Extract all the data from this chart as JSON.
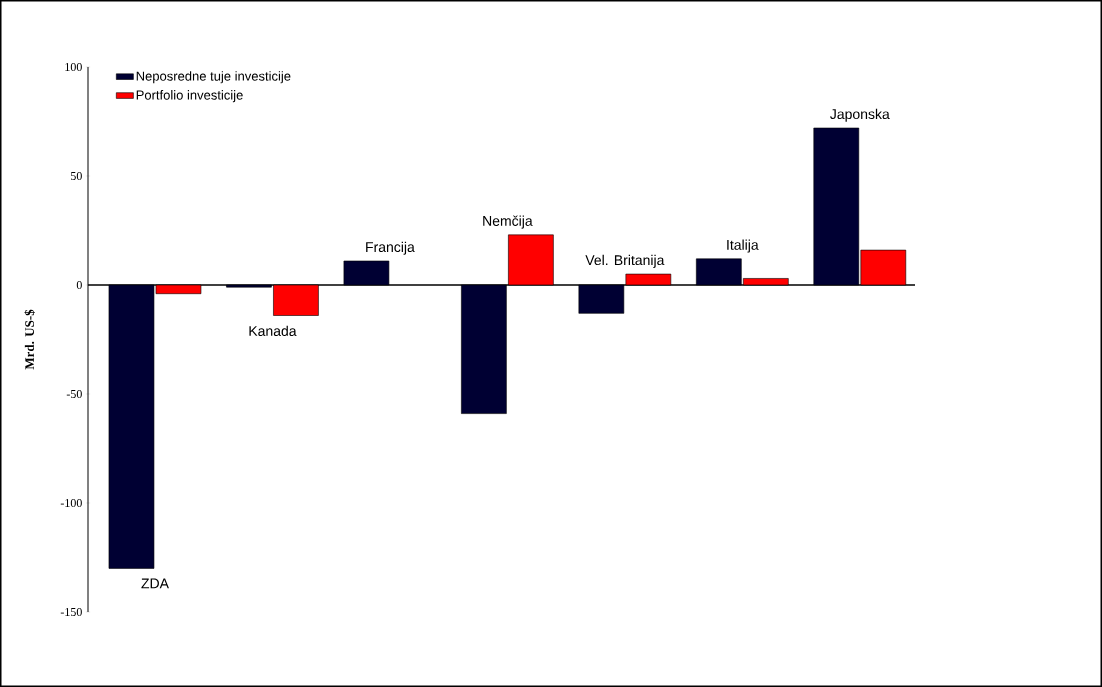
{
  "chart_data": {
    "type": "bar",
    "ylabel": "Mrd. US-$",
    "categories": [
      "ZDA",
      "Kanada",
      "Francija",
      "Nemčija",
      "Vel. Britanija",
      "Italija",
      "Japonska"
    ],
    "series": [
      {
        "name": "Neposredne tuje investicije",
        "color": "#000033",
        "values": [
          -130,
          -1,
          11,
          -59,
          -13,
          12,
          72
        ]
      },
      {
        "name": "Portfolio investicije",
        "color": "#ff0000",
        "values": [
          -4,
          -14,
          null,
          23,
          5,
          3,
          16
        ]
      }
    ],
    "ylim": [
      -150,
      100
    ],
    "yticks": [
      -150,
      -100,
      -50,
      0,
      50,
      100
    ],
    "grid": false,
    "legend": "top left"
  }
}
